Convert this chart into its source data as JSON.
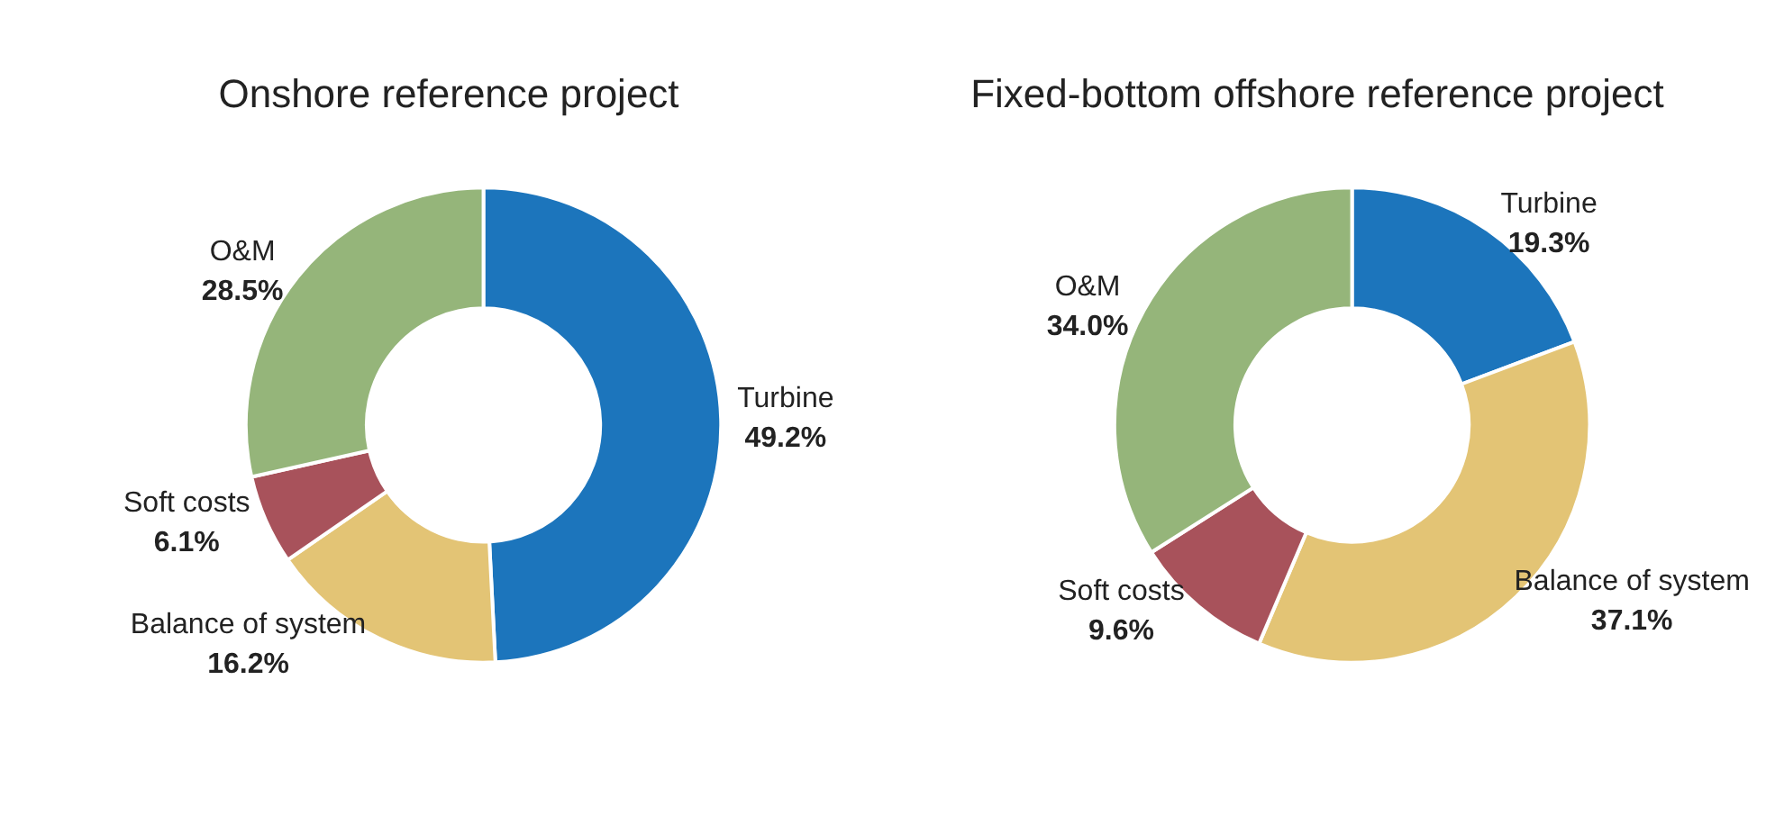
{
  "chart_data": [
    {
      "type": "donut",
      "title": "Onshore reference project",
      "categories": [
        "Turbine",
        "Balance of system",
        "Soft costs",
        "O&M"
      ],
      "values": [
        49.2,
        16.2,
        6.1,
        28.5
      ],
      "colors": [
        "#1c75bc",
        "#e3c475",
        "#a8525b",
        "#95b57a"
      ],
      "value_labels": [
        "49.2%",
        "16.2%",
        "6.1%",
        "28.5%"
      ]
    },
    {
      "type": "donut",
      "title": "Fixed-bottom offshore reference project",
      "categories": [
        "Turbine",
        "Balance of system",
        "Soft costs",
        "O&M"
      ],
      "values": [
        19.3,
        37.1,
        9.6,
        34.0
      ],
      "colors": [
        "#1c75bc",
        "#e3c475",
        "#a8525b",
        "#95b57a"
      ],
      "value_labels": [
        "19.3%",
        "37.1%",
        "9.6%",
        "34.0%"
      ]
    }
  ]
}
